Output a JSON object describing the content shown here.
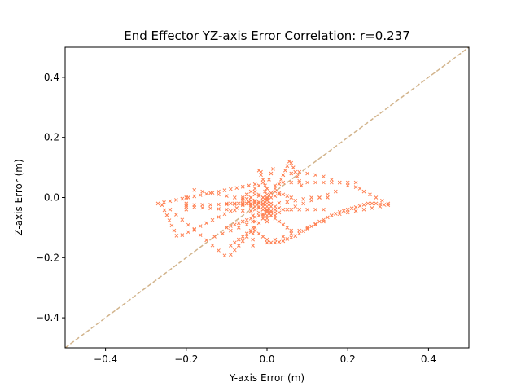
{
  "chart_data": {
    "type": "scatter",
    "title": "End Effector YZ-axis Error Correlation: r=0.237",
    "xlabel": "Y-axis Error (m)",
    "ylabel": "Z-axis Error (m)",
    "xlim": [
      -0.5,
      0.5
    ],
    "ylim": [
      -0.5,
      0.5
    ],
    "x_ticks": [
      -0.4,
      -0.2,
      0.0,
      0.2,
      0.4
    ],
    "y_ticks": [
      -0.4,
      -0.2,
      0.0,
      0.2,
      0.4
    ],
    "x_tick_labels": [
      "−0.4",
      "−0.2",
      "0.0",
      "0.2",
      "0.4"
    ],
    "y_tick_labels": [
      "−0.4",
      "−0.2",
      "0.0",
      "0.2",
      "0.4"
    ],
    "grid": false,
    "marker": "x",
    "marker_color": "#ff7f50",
    "reference_line": {
      "style": "dashed",
      "color": "#d2b48c",
      "from": [
        -0.5,
        -0.5
      ],
      "to": [
        0.5,
        0.5
      ]
    },
    "points": [
      [
        -0.27,
        -0.02
      ],
      [
        -0.255,
        -0.016
      ],
      [
        -0.24,
        -0.012
      ],
      [
        -0.225,
        -0.008
      ],
      [
        -0.21,
        -0.004
      ],
      [
        -0.195,
        0.0
      ],
      [
        -0.18,
        0.004
      ],
      [
        -0.165,
        0.008
      ],
      [
        -0.15,
        0.012
      ],
      [
        -0.135,
        0.016
      ],
      [
        -0.12,
        0.02
      ],
      [
        -0.105,
        0.024
      ],
      [
        -0.09,
        0.028
      ],
      [
        -0.075,
        0.032
      ],
      [
        -0.06,
        0.036
      ],
      [
        -0.045,
        0.04
      ],
      [
        -0.03,
        0.044
      ],
      [
        -0.2,
        -0.025
      ],
      [
        -0.18,
        -0.025
      ],
      [
        -0.16,
        -0.024
      ],
      [
        -0.14,
        -0.024
      ],
      [
        -0.12,
        -0.023
      ],
      [
        -0.1,
        -0.023
      ],
      [
        -0.08,
        -0.022
      ],
      [
        -0.06,
        -0.022
      ],
      [
        -0.04,
        -0.021
      ],
      [
        -0.2,
        -0.03
      ],
      [
        -0.18,
        -0.032
      ],
      [
        -0.16,
        -0.034
      ],
      [
        -0.14,
        -0.036
      ],
      [
        -0.12,
        -0.038
      ],
      [
        -0.1,
        -0.04
      ],
      [
        -0.08,
        -0.042
      ],
      [
        -0.06,
        -0.044
      ],
      [
        -0.04,
        -0.045
      ],
      [
        -0.26,
        -0.025
      ],
      [
        -0.254,
        -0.042
      ],
      [
        -0.248,
        -0.059
      ],
      [
        -0.242,
        -0.076
      ],
      [
        -0.236,
        -0.093
      ],
      [
        -0.23,
        -0.11
      ],
      [
        -0.224,
        -0.127
      ],
      [
        -0.21,
        -0.125
      ],
      [
        -0.195,
        -0.115
      ],
      [
        -0.18,
        -0.105
      ],
      [
        -0.165,
        -0.095
      ],
      [
        -0.15,
        -0.085
      ],
      [
        -0.135,
        -0.075
      ],
      [
        -0.12,
        -0.065
      ],
      [
        -0.105,
        -0.055
      ],
      [
        -0.09,
        -0.045
      ],
      [
        -0.075,
        -0.035
      ],
      [
        -0.06,
        -0.025
      ],
      [
        -0.045,
        -0.015
      ],
      [
        -0.24,
        -0.04
      ],
      [
        -0.225,
        -0.057
      ],
      [
        -0.21,
        -0.074
      ],
      [
        -0.195,
        -0.091
      ],
      [
        -0.18,
        -0.108
      ],
      [
        -0.165,
        -0.125
      ],
      [
        -0.15,
        -0.142
      ],
      [
        -0.135,
        -0.159
      ],
      [
        -0.12,
        -0.176
      ],
      [
        -0.105,
        -0.193
      ],
      [
        -0.09,
        -0.19
      ],
      [
        -0.08,
        -0.175
      ],
      [
        -0.07,
        -0.16
      ],
      [
        -0.06,
        -0.145
      ],
      [
        -0.05,
        -0.13
      ],
      [
        -0.04,
        -0.115
      ],
      [
        -0.03,
        -0.1
      ],
      [
        -0.02,
        -0.085
      ],
      [
        -0.01,
        -0.07
      ],
      [
        -0.2,
        -0.04
      ],
      [
        -0.2,
        -0.02
      ],
      [
        -0.2,
        -0.0
      ],
      [
        -0.2,
        0.0
      ],
      [
        -0.1,
        -0.1
      ],
      [
        -0.09,
        -0.095
      ],
      [
        -0.08,
        -0.09
      ],
      [
        -0.07,
        -0.085
      ],
      [
        -0.06,
        -0.08
      ],
      [
        -0.05,
        -0.075
      ],
      [
        -0.04,
        -0.07
      ],
      [
        -0.03,
        -0.065
      ],
      [
        -0.02,
        -0.06
      ],
      [
        -0.01,
        -0.055
      ],
      [
        -0.1,
        -0.02
      ],
      [
        -0.09,
        -0.02
      ],
      [
        -0.08,
        -0.02
      ],
      [
        -0.07,
        -0.02
      ],
      [
        -0.06,
        -0.02
      ],
      [
        -0.05,
        -0.02
      ],
      [
        -0.04,
        -0.02
      ],
      [
        -0.03,
        -0.02
      ],
      [
        -0.02,
        -0.02
      ],
      [
        -0.01,
        -0.02
      ],
      [
        -0.035,
        -0.06
      ],
      [
        -0.035,
        -0.08
      ],
      [
        -0.035,
        -0.1
      ],
      [
        -0.035,
        -0.12
      ],
      [
        -0.035,
        -0.14
      ],
      [
        -0.035,
        -0.16
      ],
      [
        -0.04,
        -0.11
      ],
      [
        -0.05,
        -0.12
      ],
      [
        -0.06,
        -0.13
      ],
      [
        -0.07,
        -0.14
      ],
      [
        -0.08,
        -0.15
      ],
      [
        -0.09,
        -0.16
      ],
      [
        -0.03,
        -0.11
      ],
      [
        -0.02,
        -0.12
      ],
      [
        -0.01,
        -0.13
      ],
      [
        0.0,
        -0.14
      ],
      [
        0.01,
        -0.15
      ],
      [
        0.02,
        -0.15
      ],
      [
        0.03,
        -0.148
      ],
      [
        0.04,
        -0.145
      ],
      [
        0.05,
        -0.138
      ],
      [
        0.06,
        -0.133
      ],
      [
        0.07,
        -0.128
      ],
      [
        0.08,
        -0.12
      ],
      [
        0.09,
        -0.112
      ],
      [
        0.1,
        -0.104
      ],
      [
        0.11,
        -0.096
      ],
      [
        0.12,
        -0.088
      ],
      [
        0.13,
        -0.08
      ],
      [
        0.14,
        -0.074
      ],
      [
        0.15,
        -0.066
      ],
      [
        0.16,
        -0.06
      ],
      [
        0.17,
        -0.054
      ],
      [
        0.18,
        -0.048
      ],
      [
        0.19,
        -0.044
      ],
      [
        0.2,
        -0.04
      ],
      [
        0.21,
        -0.036
      ],
      [
        0.22,
        -0.032
      ],
      [
        0.23,
        -0.028
      ],
      [
        0.24,
        -0.024
      ],
      [
        0.25,
        -0.02
      ],
      [
        0.26,
        -0.02
      ],
      [
        0.27,
        -0.02
      ],
      [
        0.28,
        -0.022
      ],
      [
        0.29,
        -0.024
      ],
      [
        0.3,
        -0.025
      ],
      [
        0.28,
        -0.03
      ],
      [
        0.26,
        -0.035
      ],
      [
        0.24,
        -0.04
      ],
      [
        0.22,
        -0.045
      ],
      [
        0.2,
        -0.05
      ],
      [
        0.18,
        -0.055
      ],
      [
        0.16,
        -0.06
      ],
      [
        0.3,
        -0.02
      ],
      [
        0.285,
        -0.01
      ],
      [
        0.27,
        0.0
      ],
      [
        0.255,
        0.01
      ],
      [
        0.24,
        0.02
      ],
      [
        0.23,
        0.03
      ],
      [
        0.22,
        0.035
      ],
      [
        0.2,
        0.04
      ],
      [
        0.18,
        0.05
      ],
      [
        0.16,
        0.06
      ],
      [
        0.14,
        0.07
      ],
      [
        0.12,
        0.075
      ],
      [
        0.1,
        0.08
      ],
      [
        0.08,
        0.085
      ],
      [
        0.06,
        0.08
      ],
      [
        0.04,
        0.075
      ],
      [
        0.22,
        0.05
      ],
      [
        0.2,
        0.05
      ],
      [
        0.18,
        0.05
      ],
      [
        0.16,
        0.05
      ],
      [
        0.14,
        0.05
      ],
      [
        0.12,
        0.05
      ],
      [
        0.1,
        0.05
      ],
      [
        0.08,
        0.05
      ],
      [
        0.06,
        0.05
      ],
      [
        0.04,
        0.05
      ],
      [
        0.02,
        0.04
      ],
      [
        0.0,
        0.03
      ],
      [
        0.15,
        0.0
      ],
      [
        0.13,
        0.0
      ],
      [
        0.11,
        0.0
      ],
      [
        0.09,
        -0.005
      ],
      [
        0.07,
        -0.01
      ],
      [
        0.05,
        -0.015
      ],
      [
        0.03,
        -0.018
      ],
      [
        0.01,
        -0.02
      ],
      [
        -0.01,
        -0.022
      ],
      [
        0.14,
        -0.04
      ],
      [
        0.12,
        -0.04
      ],
      [
        0.1,
        -0.04
      ],
      [
        0.08,
        -0.04
      ],
      [
        0.06,
        -0.04
      ],
      [
        0.04,
        -0.04
      ],
      [
        0.02,
        -0.04
      ],
      [
        0.0,
        -0.04
      ],
      [
        0.0,
        0.0
      ],
      [
        0.01,
        0.015
      ],
      [
        0.02,
        0.03
      ],
      [
        0.03,
        0.045
      ],
      [
        0.035,
        0.06
      ],
      [
        0.04,
        0.075
      ],
      [
        0.045,
        0.09
      ],
      [
        0.05,
        0.105
      ],
      [
        0.055,
        0.12
      ],
      [
        0.06,
        0.115
      ],
      [
        0.065,
        0.1
      ],
      [
        0.07,
        0.085
      ],
      [
        0.075,
        0.07
      ],
      [
        0.08,
        0.055
      ],
      [
        0.085,
        0.04
      ],
      [
        -0.005,
        0.02
      ],
      [
        -0.01,
        0.05
      ],
      [
        -0.015,
        0.075
      ],
      [
        -0.02,
        0.09
      ],
      [
        -0.015,
        0.085
      ],
      [
        -0.01,
        0.06
      ],
      [
        -0.005,
        0.04
      ],
      [
        0.005,
        0.06
      ],
      [
        0.01,
        0.08
      ],
      [
        0.015,
        0.095
      ],
      [
        -0.04,
        0.0
      ],
      [
        -0.03,
        -0.01
      ],
      [
        -0.02,
        -0.03
      ],
      [
        -0.01,
        -0.04
      ],
      [
        0.0,
        -0.05
      ],
      [
        0.01,
        -0.06
      ],
      [
        0.02,
        -0.07
      ],
      [
        0.03,
        -0.08
      ],
      [
        0.04,
        -0.09
      ],
      [
        0.05,
        -0.1
      ],
      [
        0.06,
        -0.11
      ],
      [
        -0.05,
        0.01
      ],
      [
        -0.04,
        0.02
      ],
      [
        -0.03,
        0.03
      ],
      [
        -0.02,
        0.04
      ],
      [
        -0.04,
        -0.03
      ],
      [
        -0.03,
        -0.04
      ],
      [
        -0.02,
        -0.05
      ],
      [
        -0.01,
        -0.06
      ],
      [
        0.0,
        -0.07
      ],
      [
        -0.06,
        -0.01
      ],
      [
        -0.05,
        -0.02
      ],
      [
        -0.04,
        -0.025
      ],
      [
        -0.03,
        -0.03
      ],
      [
        -0.02,
        -0.035
      ],
      [
        -0.01,
        -0.04
      ],
      [
        0.0,
        -0.045
      ],
      [
        0.01,
        -0.045
      ],
      [
        0.02,
        -0.04
      ],
      [
        0.03,
        -0.035
      ],
      [
        -0.06,
        0.0
      ],
      [
        -0.05,
        -0.005
      ],
      [
        -0.04,
        -0.01
      ],
      [
        -0.03,
        -0.015
      ],
      [
        -0.02,
        -0.015
      ],
      [
        -0.01,
        -0.01
      ],
      [
        0.0,
        -0.005
      ],
      [
        0.01,
        0.0
      ],
      [
        0.02,
        0.005
      ],
      [
        0.03,
        0.01
      ],
      [
        -0.05,
        0.01
      ],
      [
        -0.04,
        0.0
      ],
      [
        -0.03,
        -0.01
      ],
      [
        -0.02,
        -0.02
      ],
      [
        -0.01,
        -0.03
      ],
      [
        0.0,
        -0.04
      ],
      [
        0.01,
        -0.05
      ],
      [
        0.02,
        -0.06
      ],
      [
        -0.03,
        0.01
      ],
      [
        -0.02,
        0.005
      ],
      [
        -0.01,
        0.0
      ],
      [
        0.0,
        -0.01
      ],
      [
        0.01,
        -0.02
      ],
      [
        0.02,
        -0.03
      ],
      [
        -0.03,
        0.02
      ],
      [
        -0.02,
        0.01
      ],
      [
        -0.01,
        -0.0
      ],
      [
        0.0,
        -0.02
      ],
      [
        0.01,
        -0.03
      ],
      [
        0.02,
        -0.05
      ],
      [
        0.06,
        0.0
      ],
      [
        0.05,
        0.005
      ],
      [
        0.04,
        0.01
      ],
      [
        0.03,
        0.015
      ],
      [
        0.02,
        0.02
      ],
      [
        -0.18,
        0.025
      ],
      [
        -0.16,
        0.02
      ],
      [
        -0.14,
        0.015
      ],
      [
        -0.12,
        0.01
      ],
      [
        -0.1,
        0.005
      ],
      [
        -0.08,
        0.0
      ],
      [
        -0.06,
        -0.005
      ],
      [
        0.14,
        -0.08
      ],
      [
        0.12,
        -0.09
      ],
      [
        0.1,
        -0.1
      ],
      [
        0.08,
        -0.11
      ],
      [
        0.06,
        -0.12
      ],
      [
        0.04,
        -0.13
      ],
      [
        0.02,
        -0.14
      ],
      [
        0.0,
        -0.15
      ],
      [
        0.17,
        0.02
      ],
      [
        0.15,
        0.01
      ],
      [
        0.13,
        0.0
      ],
      [
        0.11,
        -0.01
      ],
      [
        0.09,
        -0.02
      ],
      [
        0.07,
        -0.03
      ],
      [
        0.05,
        -0.04
      ],
      [
        0.03,
        -0.05
      ],
      [
        0.01,
        -0.06
      ],
      [
        -0.01,
        -0.07
      ],
      [
        -0.03,
        -0.08
      ],
      [
        -0.05,
        -0.09
      ],
      [
        -0.07,
        -0.1
      ],
      [
        -0.09,
        -0.11
      ],
      [
        -0.11,
        -0.12
      ],
      [
        -0.13,
        -0.13
      ],
      [
        0.0,
        0.03
      ],
      [
        0.0,
        0.01
      ],
      [
        0.0,
        -0.01
      ],
      [
        0.0,
        -0.03
      ],
      [
        0.0,
        -0.06
      ],
      [
        0.0,
        -0.08
      ]
    ]
  }
}
